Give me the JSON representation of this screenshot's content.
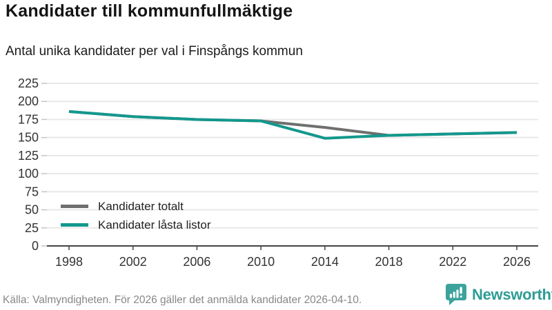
{
  "chart_data": {
    "type": "line",
    "title": "Kandidater till kommunfullmäktige",
    "subtitle": "Antal unika kandidater per val i Finspångs kommun",
    "categories": [
      "1998",
      "2002",
      "2006",
      "2010",
      "2014",
      "2018",
      "2022",
      "2026"
    ],
    "series": [
      {
        "name": "Kandidater totalt",
        "color": "#6f6f6f",
        "values": [
          186,
          179,
          175,
          173,
          164,
          153,
          155,
          157
        ]
      },
      {
        "name": "Kandidater låsta listor",
        "color": "#13988d",
        "values": [
          186,
          179,
          175,
          173,
          149,
          153,
          155,
          157
        ]
      }
    ],
    "ylim": [
      0,
      225
    ],
    "ytick_step": 25,
    "grid": true,
    "legend_position": "inside-bottom-left"
  },
  "footer": {
    "source_text": "Källa: Valmyndigheten. För 2026 gäller det anmälda kandidater 2026-04-10.",
    "brand": "Newsworthy"
  },
  "colors": {
    "accent_teal": "#13988d",
    "series_gray": "#6f6f6f",
    "logo_teal": "#3ba39c",
    "gridline": "#e8e8e8",
    "axis": "#444444",
    "footer_text": "#878787"
  }
}
